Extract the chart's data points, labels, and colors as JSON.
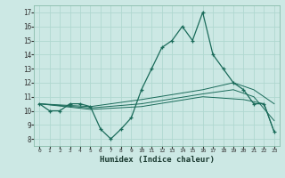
{
  "title": "",
  "xlabel": "Humidex (Indice chaleur)",
  "xlim": [
    -0.5,
    23.5
  ],
  "ylim": [
    7.5,
    17.5
  ],
  "xticks": [
    0,
    1,
    2,
    3,
    4,
    5,
    6,
    7,
    8,
    9,
    10,
    11,
    12,
    13,
    14,
    15,
    16,
    17,
    18,
    19,
    20,
    21,
    22,
    23
  ],
  "yticks": [
    8,
    9,
    10,
    11,
    12,
    13,
    14,
    15,
    16,
    17
  ],
  "background_color": "#cce8e4",
  "grid_color": "#b0d8d0",
  "line_color": "#1a6b5a",
  "curve1_x": [
    0,
    1,
    2,
    3,
    4,
    5,
    6,
    7,
    8,
    9,
    10,
    11,
    12,
    13,
    14,
    15,
    16,
    17,
    18,
    19,
    20,
    21,
    22,
    23
  ],
  "curve1_y": [
    10.5,
    10.0,
    10.0,
    10.5,
    10.5,
    10.3,
    8.7,
    8.0,
    8.7,
    9.5,
    11.5,
    13.0,
    14.5,
    15.0,
    16.0,
    15.0,
    17.0,
    14.0,
    13.0,
    12.0,
    11.5,
    10.5,
    10.5,
    8.5
  ],
  "curve2_x": [
    0,
    5,
    10,
    16,
    19,
    21,
    23
  ],
  "curve2_y": [
    10.5,
    10.3,
    10.8,
    11.5,
    12.0,
    11.5,
    10.5
  ],
  "curve3_x": [
    0,
    5,
    10,
    16,
    19,
    21,
    23
  ],
  "curve3_y": [
    10.5,
    10.2,
    10.5,
    11.2,
    11.5,
    11.0,
    9.3
  ],
  "curve4_x": [
    0,
    5,
    10,
    16,
    20,
    22,
    23
  ],
  "curve4_y": [
    10.5,
    10.1,
    10.3,
    11.0,
    10.8,
    10.5,
    8.5
  ]
}
